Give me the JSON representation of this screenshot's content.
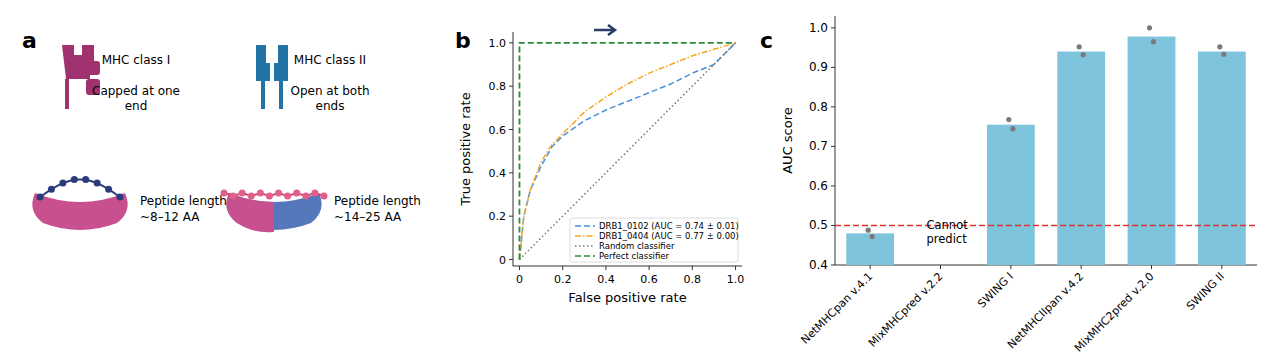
{
  "diagram": {
    "label": "a",
    "items": [
      {
        "title": "MHC class I",
        "description": [
          "Capped at one",
          "end"
        ],
        "peptide": [
          "Peptide length",
          "~8–12 AA"
        ],
        "color": "#a0336f"
      },
      {
        "title": "MHC class II",
        "description": [
          "Open at both",
          "ends"
        ],
        "peptide": [
          "Peptide length",
          "~14–25 AA"
        ],
        "color": "#2274a5"
      }
    ]
  },
  "chart_data": [
    {
      "label": "b",
      "type": "line",
      "xlabel": "False positive rate",
      "ylabel": "True positive rate",
      "xlim": [
        -0.03,
        1.03
      ],
      "ylim": [
        -0.03,
        1.05
      ],
      "xticks": [
        0,
        0.2,
        0.4,
        0.6,
        0.8,
        {
          "value": 1,
          "label": "1.0"
        }
      ],
      "yticks": [
        0,
        0.2,
        0.4,
        0.6,
        0.8,
        {
          "value": 1,
          "label": "1.0"
        }
      ],
      "grid": false,
      "legend": "lower right",
      "series": [
        {
          "name": "DRB1_0102 (AUC = 0.74 ± 0.01)",
          "color": "#4a90d9",
          "line_style": "dashed",
          "x": [
            0,
            0.02,
            0.05,
            0.1,
            0.15,
            0.2,
            0.3,
            0.4,
            0.5,
            0.6,
            0.7,
            0.8,
            0.9,
            1
          ],
          "values": [
            0,
            0.2,
            0.32,
            0.43,
            0.52,
            0.57,
            0.64,
            0.69,
            0.73,
            0.77,
            0.81,
            0.86,
            0.9,
            1
          ]
        },
        {
          "name": "DRB1_0404 (AUC = 0.77 ± 0.00)",
          "color": "#f5a623",
          "line_style": "dashdot",
          "x": [
            0,
            0.02,
            0.05,
            0.1,
            0.15,
            0.2,
            0.3,
            0.4,
            0.5,
            0.6,
            0.7,
            0.8,
            0.9,
            1
          ],
          "values": [
            0,
            0.2,
            0.32,
            0.45,
            0.53,
            0.58,
            0.68,
            0.75,
            0.81,
            0.86,
            0.9,
            0.94,
            0.97,
            1
          ]
        },
        {
          "name": "Random classifier",
          "color": "#777777",
          "line_style": "dotted",
          "x": [
            0,
            1
          ],
          "values": [
            0,
            1
          ]
        },
        {
          "name": "Perfect classifier",
          "color": "#2e8b3e",
          "line_style": "dashed",
          "x": [
            0,
            0,
            1
          ],
          "values": [
            0,
            1,
            1
          ]
        }
      ]
    },
    {
      "label": "c",
      "type": "bar",
      "ylabel": "AUC score",
      "categories": [
        "NetMHCpan v.4.1",
        "MixMHCpred v.2.2",
        "SWING I",
        "NetMHCIIpan v.4.2",
        "MixMHC2pred v.2.0",
        "SWING II"
      ],
      "values": [
        0.48,
        null,
        0.755,
        0.94,
        0.978,
        0.94
      ],
      "points": [
        [
          0.472,
          0.488
        ],
        null,
        [
          0.745,
          0.768
        ],
        [
          0.932,
          0.952
        ],
        [
          0.965,
          1.0
        ],
        [
          0.933,
          0.952
        ]
      ],
      "color": "#7ec4dc",
      "ylim": [
        0.4,
        1.03
      ],
      "yticks": [
        0.4,
        0.5,
        0.6,
        0.7,
        0.8,
        0.9,
        {
          "value": 1,
          "label": "1.0"
        }
      ],
      "grid": false,
      "reference_line": {
        "value": 0.5,
        "color": "#e03030",
        "line_style": "dashed"
      },
      "annotations": [
        {
          "text": [
            "Cannot",
            "predict"
          ],
          "category": "MixMHCpred v.2.2"
        }
      ]
    }
  ]
}
